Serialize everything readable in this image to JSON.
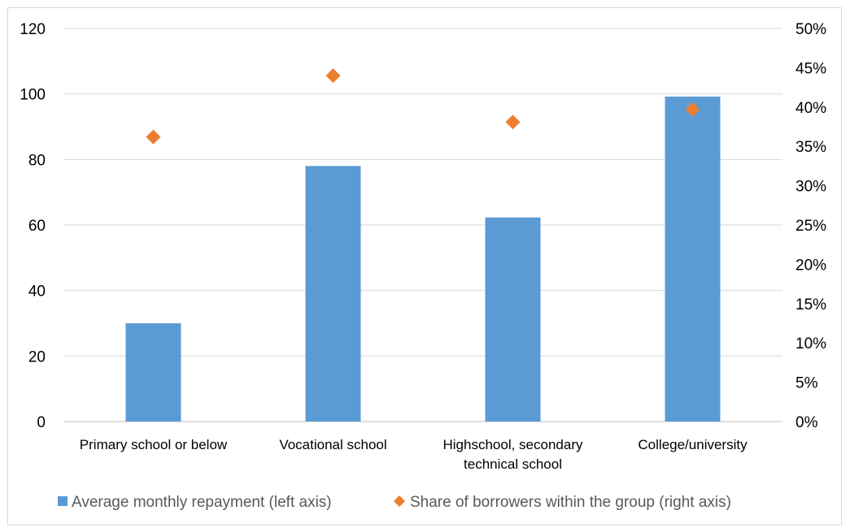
{
  "chart_data": {
    "type": "bar",
    "categories": [
      [
        "Primary school or below"
      ],
      [
        "Vocational school"
      ],
      [
        "Highschool, secondary",
        "technical school"
      ],
      [
        "College/university"
      ]
    ],
    "series": [
      {
        "name": "Average monthly repayment (left axis)",
        "type": "bar",
        "axis": "left",
        "color": "#5b9bd5",
        "values": [
          30,
          78,
          62.3,
          99.2
        ]
      },
      {
        "name": "Share of borrowers within the group (right axis)",
        "type": "scatter",
        "marker": "diamond",
        "axis": "right",
        "color": "#ed7d31",
        "values": [
          0.362,
          0.44,
          0.381,
          0.397
        ]
      }
    ],
    "y_left": {
      "ylim": [
        0,
        120
      ],
      "ticks": [
        0,
        20,
        40,
        60,
        80,
        100,
        120
      ],
      "tick_labels": [
        "0",
        "20",
        "40",
        "60",
        "80",
        "100",
        "120"
      ]
    },
    "y_right": {
      "ylim": [
        0,
        0.5
      ],
      "ticks": [
        0,
        0.05,
        0.1,
        0.15,
        0.2,
        0.25,
        0.3,
        0.35,
        0.4,
        0.45,
        0.5
      ],
      "tick_labels": [
        "0%",
        "5%",
        "10%",
        "15%",
        "20%",
        "25%",
        "30%",
        "35%",
        "40%",
        "45%",
        "50%"
      ]
    },
    "grid": true,
    "legend_position": "bottom"
  }
}
